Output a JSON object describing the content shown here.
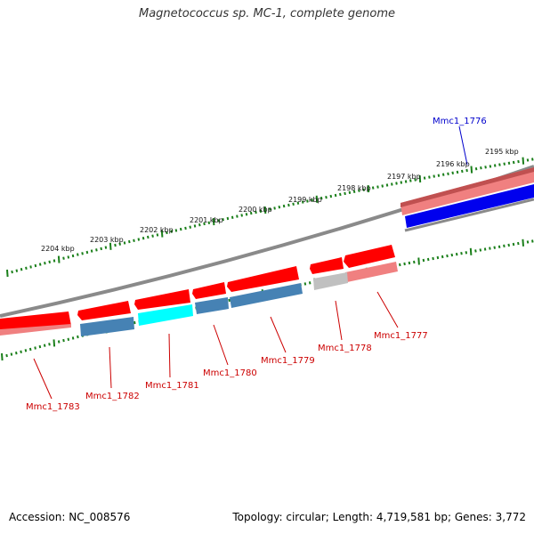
{
  "title": "Magnetococcus sp. MC-1, complete genome",
  "footer": {
    "accession": "Accession: NC_008576",
    "summary": "Topology: circular; Length: 4,719,581 bp; Genes: 3,772"
  },
  "scale": {
    "tick_labels": [
      "2195 kbp",
      "2196 kbp",
      "2197 kbp",
      "2198 kbp",
      "2199 kbp",
      "2200 kbp",
      "2201 kbp",
      "2202 kbp",
      "2203 kbp",
      "2204 kbp"
    ],
    "tick_color": "#1a7f1a"
  },
  "genes": [
    {
      "label": "Mmc1_1776",
      "color": "#0000cc"
    },
    {
      "label": "Mmc1_1777",
      "color": "#cc0000"
    },
    {
      "label": "Mmc1_1778",
      "color": "#cc0000"
    },
    {
      "label": "Mmc1_1779",
      "color": "#cc0000"
    },
    {
      "label": "Mmc1_1780",
      "color": "#cc0000"
    },
    {
      "label": "Mmc1_1781",
      "color": "#cc0000"
    },
    {
      "label": "Mmc1_1782",
      "color": "#cc0000"
    },
    {
      "label": "Mmc1_1783",
      "color": "#cc0000"
    }
  ],
  "colors": {
    "cds_forward": "#ff0000",
    "cds_forward_light": "#f08080",
    "gene_blue": "#0000ee",
    "gene_steelblue": "#4682b4",
    "gene_cyan": "#00ffff",
    "gene_gray": "#c0c0c0",
    "backbone": "#808080"
  }
}
